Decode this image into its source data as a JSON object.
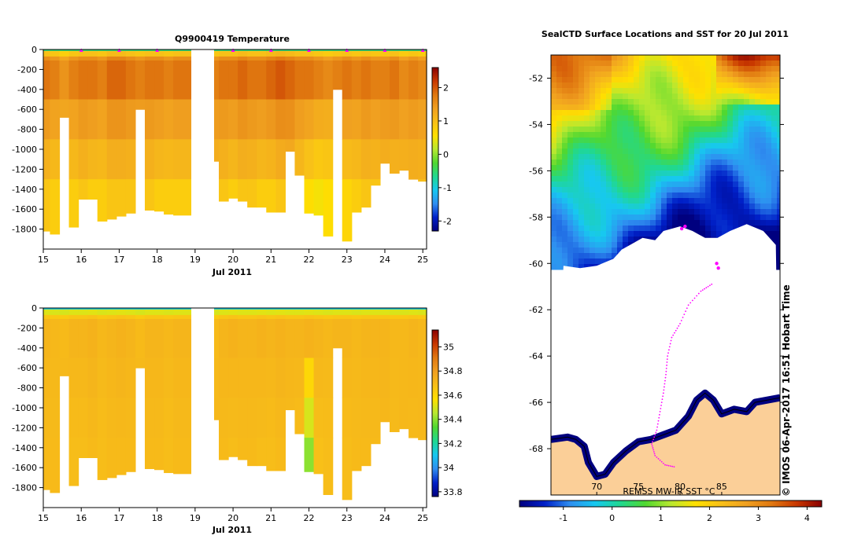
{
  "figure": {
    "copyright": "© IMOS 06-Apr-2017 16:51 Hobart Time"
  },
  "colors": {
    "cmap": [
      "#00007f",
      "#0020c8",
      "#2f8ef0",
      "#17c8f0",
      "#20d890",
      "#50d830",
      "#b8e830",
      "#ffe000",
      "#f8c018",
      "#f0a020",
      "#e07810",
      "#c83800",
      "#8a0000"
    ],
    "land": "#fbcf98",
    "track": "#ff00ff",
    "ice": "#ffffff"
  },
  "chart_data": [
    {
      "type": "heatmap",
      "title": "Q9900419  Temperature",
      "xlabel": "Jul 2011",
      "ylabel": "",
      "xlim": [
        15,
        25.1
      ],
      "ylim": [
        -2000,
        0
      ],
      "xticks": [
        15,
        16,
        17,
        18,
        19,
        20,
        21,
        22,
        23,
        24,
        25
      ],
      "yticks": [
        0,
        -200,
        -400,
        -600,
        -800,
        -1000,
        -1200,
        -1400,
        -1600,
        -1800
      ],
      "colorbar": {
        "range": [
          -2.3,
          2.6
        ],
        "ticks": [
          2,
          1,
          0,
          -1,
          -2
        ]
      },
      "surface_value": -0.6,
      "deep_value": 1.6,
      "profiles": {
        "time": [
          15.05,
          15.3,
          15.55,
          15.8,
          16.05,
          16.3,
          16.55,
          16.8,
          17.05,
          17.3,
          17.55,
          17.8,
          18.05,
          18.3,
          18.55,
          19.5,
          19.75,
          20.0,
          20.25,
          20.5,
          20.75,
          21.0,
          21.25,
          21.5,
          21.75,
          22.0,
          22.25,
          22.5,
          22.75,
          23.0,
          23.25,
          23.5,
          23.75,
          24.0,
          24.25,
          24.5,
          24.75,
          25.0
        ],
        "max_depth": [
          -1820,
          -1850,
          -680,
          -1780,
          -1500,
          -1500,
          -1720,
          -1700,
          -1670,
          -1640,
          -600,
          -1610,
          -1620,
          -1650,
          -1660,
          -1120,
          -1520,
          -1490,
          -1520,
          -1580,
          -1580,
          -1630,
          -1630,
          -1020,
          -1260,
          -1640,
          -1660,
          -1870,
          -400,
          -1920,
          -1630,
          -1580,
          -1360,
          -1140,
          -1240,
          -1210,
          -1300,
          -1320
        ],
        "upper_value": [
          1.8,
          1.7,
          1.5,
          1.7,
          1.8,
          1.8,
          1.7,
          1.9,
          1.9,
          1.8,
          1.7,
          1.8,
          1.8,
          1.7,
          1.8,
          1.7,
          1.8,
          1.8,
          1.9,
          1.8,
          1.8,
          1.9,
          2.0,
          1.9,
          1.8,
          1.8,
          1.7,
          1.6,
          1.7,
          1.8,
          1.7,
          1.8,
          1.7,
          1.7,
          1.8,
          1.6,
          1.7,
          1.6
        ],
        "deep_value": [
          0.9,
          0.8,
          1.0,
          0.8,
          0.9,
          0.8,
          0.8,
          0.9,
          0.9,
          0.9,
          1.0,
          0.9,
          0.8,
          0.8,
          0.8,
          1.0,
          0.9,
          0.8,
          0.9,
          0.9,
          0.8,
          0.8,
          0.9,
          1.0,
          0.8,
          0.6,
          0.5,
          0.6,
          1.0,
          0.7,
          0.8,
          0.9,
          0.9,
          1.0,
          0.9,
          1.0,
          1.0,
          1.0
        ]
      },
      "gaps": [
        [
          18.9,
          19.5
        ]
      ],
      "surface_markers": [
        16,
        17,
        18,
        20,
        21,
        22,
        23,
        24,
        25
      ]
    },
    {
      "type": "heatmap",
      "title": "",
      "xlabel": "Jul 2011",
      "ylabel": "",
      "xlim": [
        15,
        25.1
      ],
      "ylim": [
        -2000,
        0
      ],
      "xticks": [
        15,
        16,
        17,
        18,
        19,
        20,
        21,
        22,
        23,
        24,
        25
      ],
      "yticks": [
        0,
        -200,
        -400,
        -600,
        -800,
        -1000,
        -1200,
        -1400,
        -1600,
        -1800
      ],
      "colorbar": {
        "range": [
          33.76,
          35.14
        ],
        "ticks": [
          35,
          34.8,
          34.6,
          34.4,
          34.2,
          34,
          33.8
        ]
      },
      "surface_value": 34.12,
      "deep_value": 34.74,
      "profiles": {
        "time": [
          15.05,
          15.3,
          15.55,
          15.8,
          16.05,
          16.3,
          16.55,
          16.8,
          17.05,
          17.3,
          17.55,
          17.8,
          18.05,
          18.3,
          18.55,
          19.5,
          19.75,
          20.0,
          20.25,
          20.5,
          20.75,
          21.0,
          21.25,
          21.5,
          21.75,
          22.0,
          22.25,
          22.5,
          22.75,
          23.0,
          23.25,
          23.5,
          23.75,
          24.0,
          24.25,
          24.5,
          24.75,
          25.0
        ],
        "max_depth": [
          -1820,
          -1850,
          -680,
          -1780,
          -1500,
          -1500,
          -1720,
          -1700,
          -1670,
          -1640,
          -600,
          -1610,
          -1620,
          -1650,
          -1660,
          -1120,
          -1520,
          -1490,
          -1520,
          -1580,
          -1580,
          -1630,
          -1630,
          -1020,
          -1260,
          -1640,
          -1660,
          -1870,
          -400,
          -1920,
          -1630,
          -1580,
          -1360,
          -1140,
          -1240,
          -1210,
          -1300,
          -1320
        ],
        "upper_value": [
          34.72,
          34.71,
          34.7,
          34.72,
          34.72,
          34.73,
          34.71,
          34.72,
          34.73,
          34.72,
          34.7,
          34.72,
          34.72,
          34.71,
          34.72,
          34.7,
          34.72,
          34.73,
          34.72,
          34.72,
          34.73,
          34.72,
          34.73,
          34.72,
          34.72,
          34.73,
          34.72,
          34.71,
          34.72,
          34.72,
          34.71,
          34.72,
          34.72,
          34.72,
          34.71,
          34.71,
          34.72,
          34.71
        ],
        "deep_value": [
          34.7,
          34.7,
          34.71,
          34.69,
          34.69,
          34.7,
          34.69,
          34.7,
          34.7,
          34.7,
          34.71,
          34.7,
          34.7,
          34.69,
          34.7,
          34.71,
          34.7,
          34.69,
          34.7,
          34.7,
          34.69,
          34.69,
          34.7,
          34.7,
          34.69,
          34.4,
          34.68,
          34.69,
          34.71,
          34.69,
          34.7,
          34.7,
          34.7,
          34.71,
          34.7,
          34.71,
          34.7,
          34.71
        ]
      },
      "gaps": [
        [
          18.9,
          19.5
        ]
      ],
      "surface_markers": []
    },
    {
      "type": "heatmap",
      "title": "SealCTD Surface Locations and SST for 20 Jul 2011",
      "xlabel": "",
      "ylabel": "",
      "ylim": [
        -70,
        -51
      ],
      "yticks": [
        -52,
        -54,
        -56,
        -58,
        -60,
        -62,
        -64,
        -66,
        -68
      ],
      "top_xticks": [
        70,
        75,
        80,
        85
      ],
      "colorbar": {
        "label": "REMSS MW-IR SST °C",
        "range": [
          -1.9,
          4.3
        ],
        "ticks": [
          -1,
          0,
          1,
          2,
          3,
          4
        ]
      },
      "track": [
        [
          83.8,
          -60.9
        ],
        [
          82.5,
          -61.2
        ],
        [
          81.0,
          -61.8
        ],
        [
          80.0,
          -62.6
        ],
        [
          79.0,
          -63.2
        ],
        [
          78.5,
          -64.0
        ],
        [
          78.3,
          -64.8
        ],
        [
          78.0,
          -65.6
        ],
        [
          77.6,
          -66.4
        ],
        [
          77.2,
          -67.2
        ],
        [
          76.6,
          -67.8
        ],
        [
          77.0,
          -68.3
        ],
        [
          78.2,
          -68.7
        ],
        [
          79.5,
          -68.8
        ]
      ],
      "ice_edge": [
        [
          66,
          -60.1
        ],
        [
          68,
          -60.2
        ],
        [
          70,
          -60.1
        ],
        [
          72,
          -59.8
        ],
        [
          73,
          -59.4
        ],
        [
          74,
          -59.2
        ],
        [
          75.5,
          -58.9
        ],
        [
          77,
          -59.0
        ],
        [
          78,
          -58.6
        ],
        [
          80,
          -58.4
        ],
        [
          81.5,
          -58.6
        ],
        [
          83,
          -58.9
        ],
        [
          84.5,
          -58.9
        ],
        [
          86,
          -58.6
        ],
        [
          88,
          -58.3
        ],
        [
          90,
          -58.6
        ],
        [
          91.5,
          -59.2
        ]
      ]
    }
  ]
}
